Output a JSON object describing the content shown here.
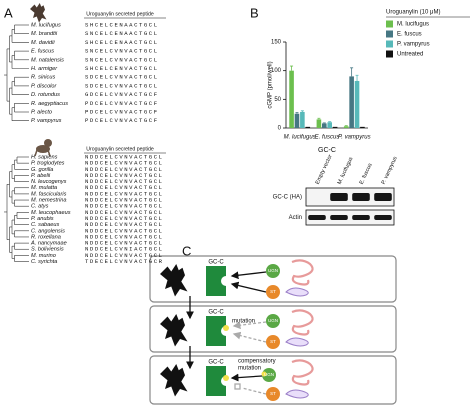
{
  "panel_labels": [
    "A",
    "B",
    "C"
  ],
  "panel_a": {
    "bats": {
      "header": "Uroguanylin secreted peptide",
      "species": [
        "M. lucifugus",
        "M. brandtii",
        "M. davidii",
        "E. fuscus",
        "M. natalensis",
        "H. armiger",
        "R. sinicus",
        "P. discolor",
        "D. rotundus",
        "R. aegyptiacus",
        "P. alecto",
        "P. vampyrus"
      ],
      "sequences": [
        "SHCELCENAACTGCL",
        "SNCELCENAACTGCL",
        "SHCELCENAACTGCL",
        "SNCELCVNVACTGCL",
        "SNCELCVNVACTGCL",
        "SHCELCENVACTGCL",
        "SDCELCVNVACTGCL",
        "SDCELCVNVACTGCL",
        "GDCELCVNVACTGCF",
        "PDCELCVNVACTGCF",
        "PDCELCVNVACTGCF",
        "PDCELCVNVACTGCF"
      ]
    },
    "primates": {
      "header": "Uroguanylin secreted peptide",
      "species": [
        "H. sapiens",
        "P. troglodytes",
        "G. gorilla",
        "P. abelii",
        "N. leucogenys",
        "M. mulatta",
        "M. fascicularis",
        "M. nemestrina",
        "C. atys",
        "M. leucophaeus",
        "P. anubis",
        "C. sabaeus",
        "C. angolensis",
        "R. roxellana",
        "A. nancymaae",
        "S. boliviensis",
        "M. murino",
        "C. syrichta"
      ],
      "sequences": [
        "NDDCELCVNVACTGCL",
        "NDDCELCVNVACTGCL",
        "NDDCELCVNVACTGCL",
        "NDDCELCVNVACTGCL",
        "NDDCELCVNVACTGCL",
        "NDDCELCVNVACTGCL",
        "NDDCELCVNVACTGCL",
        "NDDCELCVNVACTGCL",
        "NDDCELCVNVACTGCL",
        "NDDCELCVNVACTGCL",
        "NDDCELCVNVACTGCL",
        "NDDCELCVNVACTGCL",
        "NDDCELCVNVACTGCL",
        "NDDCELCVNVACTGCL",
        "NDDCELCVNVACTGCL",
        "NDDCELCVNIACTGCL",
        "NDDCELCVNVACTGCL",
        "TDECELCVNVACTGCR"
      ]
    }
  },
  "chart_data": {
    "type": "bar",
    "y_label": "cGMP (pmol/well)",
    "x_label": "GC-C",
    "legend_title": "Uroguanylin (10 μM)",
    "categories": [
      "M. lucifugus",
      "E. fuscus",
      "P. vampyrus"
    ],
    "series": [
      {
        "name": "M. lucifugus",
        "color": "#6cbf4e",
        "values": [
          100,
          15,
          3
        ],
        "errors": [
          8,
          2,
          1
        ]
      },
      {
        "name": "E. fuscus",
        "color": "#467783",
        "values": [
          25,
          8,
          90
        ],
        "errors": [
          2,
          1,
          15
        ]
      },
      {
        "name": "P. vampyrus",
        "color": "#57b9b9",
        "values": [
          28,
          10,
          82
        ],
        "errors": [
          2,
          1,
          10
        ]
      },
      {
        "name": "Untreated",
        "color": "#111111",
        "values": [
          2,
          2,
          2
        ]
      }
    ],
    "ylim": [
      0,
      150
    ],
    "yticks": [
      0,
      50,
      100,
      150
    ]
  },
  "blot": {
    "lanes": [
      "Empty vector",
      "M. lucifugus",
      "E. fuscus",
      "P. vampyrus"
    ],
    "rows": [
      "GC-C (HA)",
      "Actin"
    ]
  },
  "panel_c": {
    "receptor": "GC-C",
    "ugn": "UGN",
    "st": "ST",
    "mutation": "mutation",
    "compensatory_mutation": [
      "compensatory",
      "mutation"
    ]
  }
}
